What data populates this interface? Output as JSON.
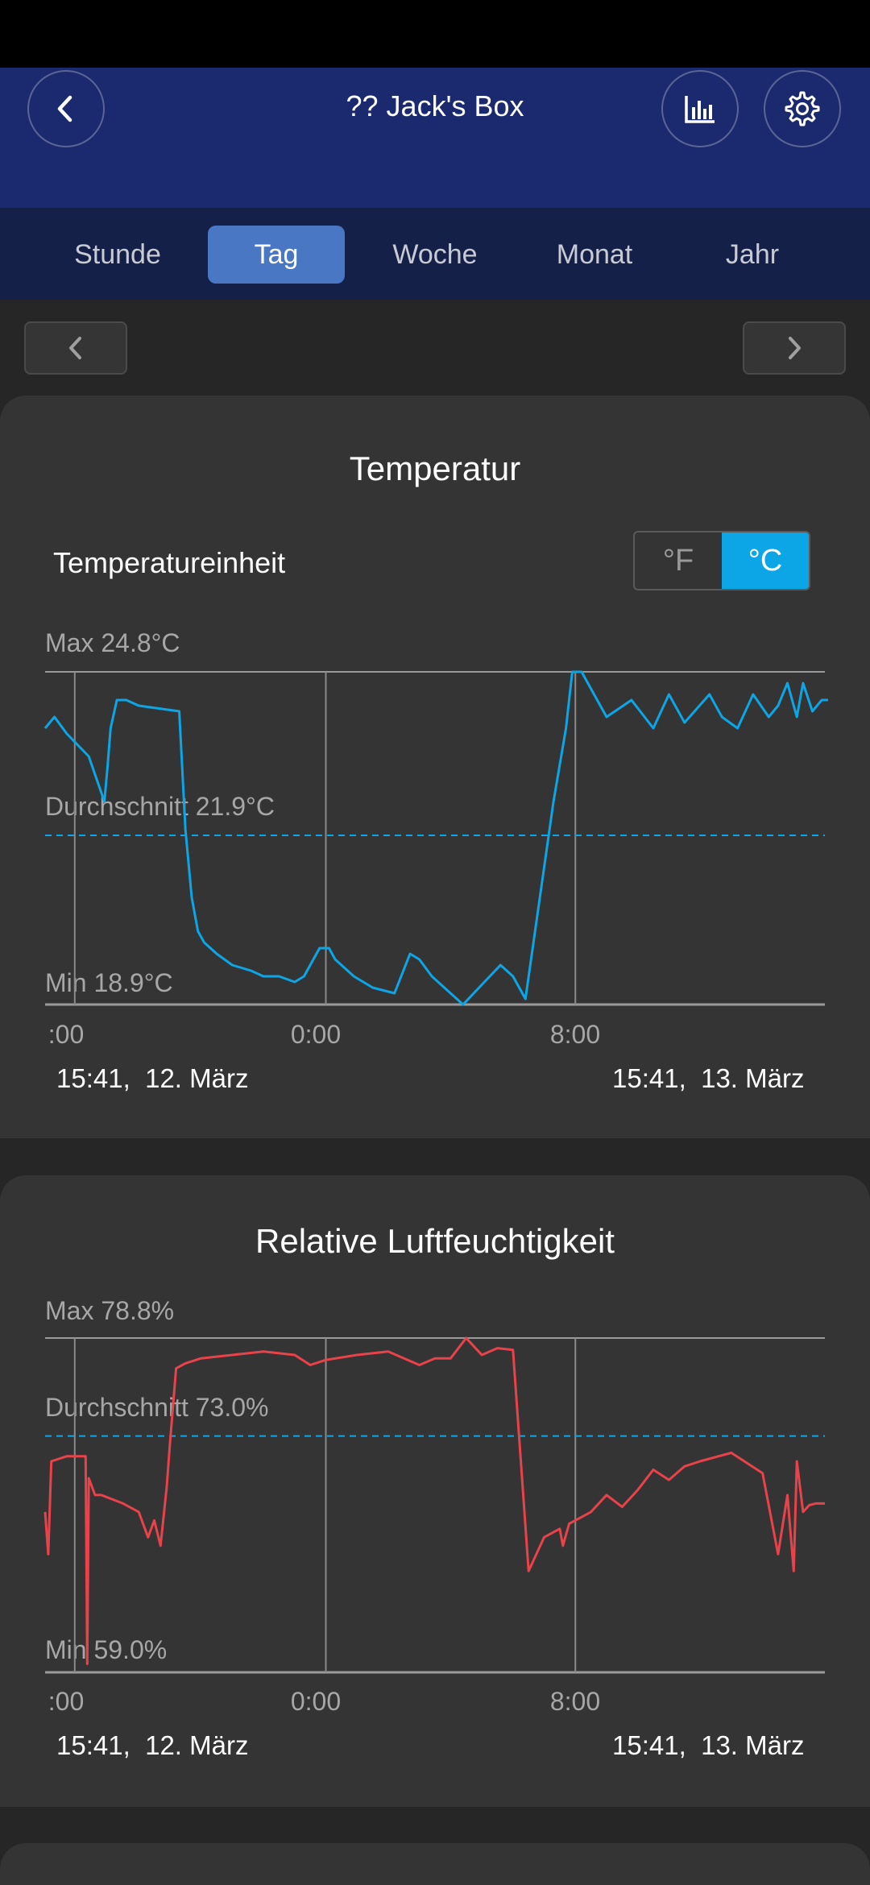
{
  "header": {
    "title": "?? Jack's Box",
    "back_icon": "chevron-left-icon",
    "stats_icon": "bar-chart-icon",
    "settings_icon": "gear-icon"
  },
  "tabs": [
    {
      "label": "Stunde",
      "active": false
    },
    {
      "label": "Tag",
      "active": true
    },
    {
      "label": "Woche",
      "active": false
    },
    {
      "label": "Monat",
      "active": false
    },
    {
      "label": "Jahr",
      "active": false
    }
  ],
  "colors": {
    "accent": "#0ca6e6",
    "humidity_line": "#e8424a",
    "header": "#1b2a6e"
  },
  "temperature": {
    "title": "Temperatur",
    "unit_label": "Temperatureinheit",
    "unit_f": "°F",
    "unit_c": "°C",
    "selected_unit": "°C",
    "max_label": "Max 24.8°C",
    "avg_label": "Durchschnitt 21.9°C",
    "min_label": "Min 18.9°C",
    "ticks": [
      ":00",
      "0:00",
      "8:00"
    ],
    "start_date": "15:41,  12. März",
    "end_date": "15:41,  13. März"
  },
  "humidity": {
    "title": "Relative Luftfeuchtigkeit",
    "max_label": "Max 78.8%",
    "avg_label": "Durchschnitt 73.0%",
    "min_label": "Min 59.0%",
    "ticks": [
      ":00",
      "0:00",
      "8:00"
    ],
    "start_date": "15:41,  12. März",
    "end_date": "15:41,  13. März"
  },
  "chart_data": [
    {
      "type": "line",
      "title": "Temperatur",
      "ylim": [
        18.9,
        24.8
      ],
      "average": 21.9,
      "x_tick_labels": [
        ":00",
        "0:00",
        "8:00"
      ],
      "x_tick_hours": [
        -0.45,
        8.0,
        16.0
      ],
      "series": [
        {
          "x": [
            -1.0,
            -0.7,
            -0.3,
            0.4,
            0.9,
            1.0,
            1.1,
            1.3,
            1.6,
            2.0,
            3.3,
            3.5,
            3.7,
            3.9,
            4.1,
            4.5,
            5.0,
            5.6,
            6.0,
            6.5,
            7.0,
            7.3,
            7.8,
            8.1,
            8.3,
            8.9,
            9.5,
            10.2,
            10.7,
            11.0,
            11.4,
            12.4,
            13.6,
            14.0,
            14.4,
            15.3,
            15.7,
            15.9,
            16.0,
            16.2,
            16.5,
            17.0,
            17.8,
            18.5,
            19.0,
            19.5,
            20.3,
            20.7,
            21.2,
            21.7,
            22.2,
            22.5,
            22.8,
            23.1,
            23.3,
            23.6,
            23.9,
            24.1
          ],
          "y": [
            23.8,
            24.0,
            23.7,
            23.3,
            22.5,
            23.1,
            23.8,
            24.3,
            24.3,
            24.2,
            24.1,
            22.0,
            20.8,
            20.2,
            20.0,
            19.8,
            19.6,
            19.5,
            19.4,
            19.4,
            19.3,
            19.4,
            19.9,
            19.9,
            19.7,
            19.4,
            19.2,
            19.1,
            19.8,
            19.7,
            19.4,
            18.9,
            19.6,
            19.4,
            19.0,
            22.5,
            23.8,
            24.8,
            24.8,
            24.8,
            24.5,
            24.0,
            24.3,
            23.8,
            24.4,
            23.9,
            24.4,
            24.0,
            23.8,
            24.4,
            24.0,
            24.2,
            24.6,
            24.0,
            24.6,
            24.1,
            24.3,
            24.3
          ]
        }
      ]
    },
    {
      "type": "line",
      "title": "Relative Luftfeuchtigkeit",
      "ylim": [
        59.0,
        78.8
      ],
      "average": 73.0,
      "x_tick_labels": [
        ":00",
        "0:00",
        "8:00"
      ],
      "x_tick_hours": [
        -0.45,
        8.0,
        16.0
      ],
      "series": [
        {
          "x": [
            -1.0,
            -0.9,
            -0.8,
            -0.3,
            0.3,
            0.35,
            0.4,
            0.6,
            0.8,
            1.5,
            2.0,
            2.3,
            2.5,
            2.7,
            2.9,
            3.0,
            3.2,
            3.5,
            4.0,
            5.0,
            6.0,
            7.0,
            7.5,
            8.0,
            9.0,
            10.0,
            11.0,
            11.5,
            12.0,
            12.5,
            13.0,
            13.5,
            14.0,
            14.5,
            15.0,
            15.5,
            15.6,
            15.8,
            16.0,
            16.5,
            17.0,
            17.5,
            18.0,
            18.5,
            19.0,
            19.5,
            20.0,
            21.0,
            22.0,
            22.5,
            22.8,
            23.0,
            23.1,
            23.3,
            23.5,
            23.7,
            24.0
          ],
          "y": [
            68.5,
            66.0,
            71.5,
            71.8,
            71.8,
            59.5,
            70.5,
            69.5,
            69.5,
            69.0,
            68.5,
            67.0,
            68.0,
            66.5,
            70.0,
            72.5,
            77.0,
            77.3,
            77.6,
            77.8,
            78.0,
            77.8,
            77.2,
            77.5,
            77.8,
            78.0,
            77.2,
            77.6,
            77.6,
            78.8,
            77.8,
            78.2,
            78.1,
            65.0,
            67.0,
            67.5,
            66.5,
            67.8,
            68.0,
            68.5,
            69.5,
            68.8,
            69.8,
            71.0,
            70.4,
            71.2,
            71.5,
            72.0,
            70.8,
            66.0,
            69.5,
            65.0,
            71.5,
            68.5,
            68.9,
            69.0,
            69.0
          ]
        }
      ]
    }
  ]
}
